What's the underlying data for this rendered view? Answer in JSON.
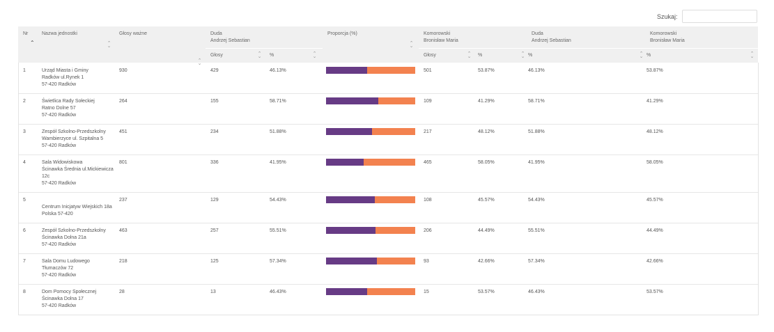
{
  "search": {
    "label": "Szukaj:",
    "value": ""
  },
  "colors": {
    "duda": "#673b85",
    "komorowski": "#f3824f",
    "header_bg": "#f0f0f0"
  },
  "header": {
    "nr": "Nr",
    "nazwa": "Nazwa jednostki",
    "glosy_wazne": "Głosy ważne",
    "duda_1": "Duda",
    "duda_2": "Andrzej Sebastian",
    "proporcja": "Proporcja (%)",
    "komorowski_1": "Komorowski",
    "komorowski_2": "Bronisław Maria",
    "duda_b_1": "Duda",
    "duda_b_2": "Andrzej Sebastian",
    "komorowski_b_1": "Komorowski",
    "komorowski_b_2": "Bronisław Maria",
    "sub_glosy": "Głosy",
    "sub_pct": "%"
  },
  "rows": [
    {
      "nr": "1",
      "name": [
        "Urząd Miasta i Gminy",
        "Radków ul.Rynek 1",
        "57-420 Radków"
      ],
      "wazne": "930",
      "duda_glosy": "429",
      "duda_pct": "46.13%",
      "duda_share": 46.13,
      "kom_glosy": "501",
      "kom_pct": "53.87%",
      "duda_pct2": "46.13%",
      "kom_pct2": "53.87%"
    },
    {
      "nr": "2",
      "name": [
        "Świetlica Rady Sołeckiej",
        "Ratno Dolne 57",
        "57-420 Radków"
      ],
      "wazne": "264",
      "duda_glosy": "155",
      "duda_pct": "58.71%",
      "duda_share": 58.71,
      "kom_glosy": "109",
      "kom_pct": "41.29%",
      "duda_pct2": "58.71%",
      "kom_pct2": "41.29%"
    },
    {
      "nr": "3",
      "name": [
        "Zespół Szkolno-Przedszkolny",
        "Wambierzyce ul. Szpitalna 5",
        "57-420 Radków"
      ],
      "wazne": "451",
      "duda_glosy": "234",
      "duda_pct": "51.88%",
      "duda_share": 51.88,
      "kom_glosy": "217",
      "kom_pct": "48.12%",
      "duda_pct2": "51.88%",
      "kom_pct2": "48.12%"
    },
    {
      "nr": "4",
      "name": [
        "Sala Widowiskowa",
        "Ścinawka Średnia ul.Mickiewicza",
        "12c",
        "57-420 Radków"
      ],
      "wazne": "801",
      "duda_glosy": "336",
      "duda_pct": "41.95%",
      "duda_share": 41.95,
      "kom_glosy": "465",
      "kom_pct": "58.05%",
      "duda_pct2": "41.95%",
      "kom_pct2": "58.05%"
    },
    {
      "nr": "5",
      "name": [
        "",
        "Centrum Inicjatyw Wiejskich 18a",
        "Polska 57-420"
      ],
      "wazne": "237",
      "duda_glosy": "129",
      "duda_pct": "54.43%",
      "duda_share": 54.43,
      "kom_glosy": "108",
      "kom_pct": "45.57%",
      "duda_pct2": "54.43%",
      "kom_pct2": "45.57%"
    },
    {
      "nr": "6",
      "name": [
        "Zespół Szkolno-Przedszkolny",
        "Ścinawka Dolna 21a",
        "57-420 Radków"
      ],
      "wazne": "463",
      "duda_glosy": "257",
      "duda_pct": "55.51%",
      "duda_share": 55.51,
      "kom_glosy": "206",
      "kom_pct": "44.49%",
      "duda_pct2": "55.51%",
      "kom_pct2": "44.49%"
    },
    {
      "nr": "7",
      "name": [
        "Sala Domu Ludowego",
        "Tłumaczów 72",
        "57-420 Radków"
      ],
      "wazne": "218",
      "duda_glosy": "125",
      "duda_pct": "57.34%",
      "duda_share": 57.34,
      "kom_glosy": "93",
      "kom_pct": "42.66%",
      "duda_pct2": "57.34%",
      "kom_pct2": "42.66%"
    },
    {
      "nr": "8",
      "name": [
        "Dom Pomocy Społecznej",
        "Ścinawka Dolna 17",
        "57-420 Radków"
      ],
      "wazne": "28",
      "duda_glosy": "13",
      "duda_pct": "46.43%",
      "duda_share": 46.43,
      "kom_glosy": "15",
      "kom_pct": "53.57%",
      "duda_pct2": "46.43%",
      "kom_pct2": "53.57%"
    }
  ]
}
